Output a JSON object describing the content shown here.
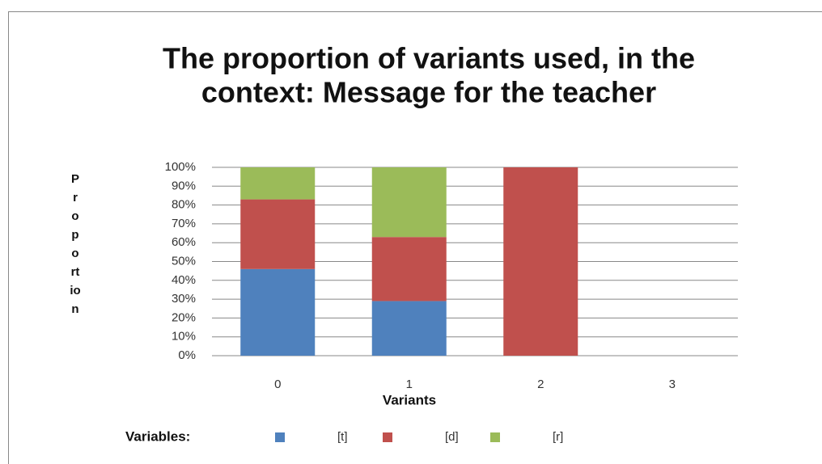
{
  "chart_data": {
    "type": "stacked_bar",
    "title": [
      "The proportion of variants used, in the",
      "context: Message for the teacher"
    ],
    "x_label": "Variants",
    "y_label": "Proportion",
    "legend_title": "Variables:",
    "categories": [
      "0",
      "1",
      "2",
      "3"
    ],
    "series": [
      {
        "name": "[t]",
        "color": "#4f81bd",
        "values": [
          46,
          29,
          0,
          null
        ]
      },
      {
        "name": "[d]",
        "color": "#c0504d",
        "values": [
          37,
          34,
          100,
          null
        ]
      },
      {
        "name": "[r]",
        "color": "#9bbb59",
        "values": [
          17,
          37,
          0,
          null
        ]
      }
    ],
    "ylim": [
      0,
      100
    ],
    "yticks": [
      {
        "value": 0,
        "label": "0%"
      },
      {
        "value": 10,
        "label": "10%"
      },
      {
        "value": 20,
        "label": "20%"
      },
      {
        "value": 30,
        "label": "30%"
      },
      {
        "value": 40,
        "label": "40%"
      },
      {
        "value": 50,
        "label": "50%"
      },
      {
        "value": 60,
        "label": "60%"
      },
      {
        "value": 70,
        "label": "70%"
      },
      {
        "value": 80,
        "label": "80%"
      },
      {
        "value": 90,
        "label": "90%"
      },
      {
        "value": 100,
        "label": "100%"
      }
    ],
    "grid": true,
    "legend": "bottom"
  }
}
